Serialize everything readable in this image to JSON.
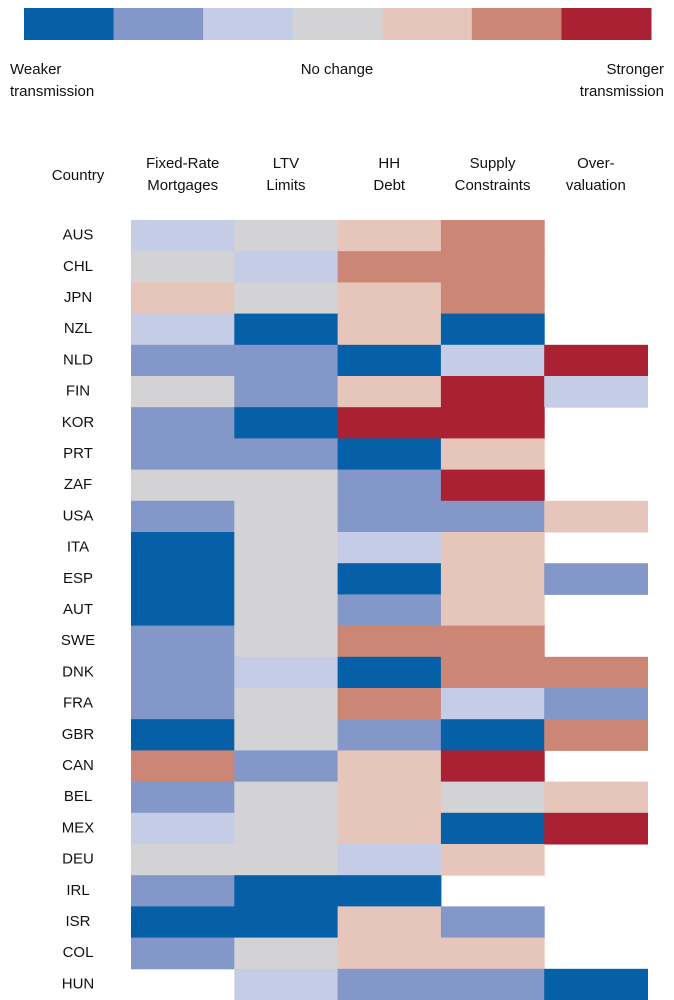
{
  "chart_data": {
    "type": "heatmap",
    "colors": [
      "#0560a8",
      "#8497c9",
      "#c5cce6",
      "#d3d3d5",
      "#e6c6bb",
      "#cb8675",
      "#a92132"
    ],
    "vlim": [
      -3,
      3
    ],
    "legend_labels": [
      [
        "Weaker",
        "transmission"
      ],
      [
        "No change"
      ],
      [
        "Stronger",
        "transmission"
      ]
    ],
    "row_header": "Country",
    "columns": [
      [
        "Fixed-Rate",
        "Mortgages"
      ],
      [
        "LTV",
        "Limits"
      ],
      [
        "HH",
        "Debt"
      ],
      [
        "Supply",
        "Constraints"
      ],
      [
        "Over-",
        "valuation"
      ]
    ],
    "rows": [
      "AUS",
      "CHL",
      "JPN",
      "NZL",
      "NLD",
      "FIN",
      "KOR",
      "PRT",
      "ZAF",
      "USA",
      "ITA",
      "ESP",
      "AUT",
      "SWE",
      "DNK",
      "FRA",
      "GBR",
      "CAN",
      "BEL",
      "MEX",
      "DEU",
      "IRL",
      "ISR",
      "COL",
      "HUN"
    ],
    "values": [
      [
        -1,
        0,
        1,
        2,
        null
      ],
      [
        0,
        -1,
        2,
        2,
        null
      ],
      [
        1,
        0,
        1,
        2,
        null
      ],
      [
        -1,
        -3,
        1,
        -3,
        null
      ],
      [
        -2,
        -2,
        -3,
        -1,
        3
      ],
      [
        0,
        -2,
        1,
        3,
        -1
      ],
      [
        -2,
        -3,
        3,
        3,
        null
      ],
      [
        -2,
        -2,
        -3,
        1,
        null
      ],
      [
        0,
        0,
        -2,
        3,
        null
      ],
      [
        -2,
        0,
        -2,
        -2,
        1
      ],
      [
        -3,
        0,
        -1,
        1,
        null
      ],
      [
        -3,
        0,
        -3,
        1,
        -2
      ],
      [
        -3,
        0,
        -2,
        1,
        null
      ],
      [
        -2,
        0,
        2,
        2,
        null
      ],
      [
        -2,
        -1,
        -3,
        2,
        2
      ],
      [
        -2,
        0,
        2,
        -1,
        -2
      ],
      [
        -3,
        0,
        -2,
        -3,
        2
      ],
      [
        2,
        -2,
        1,
        3,
        null
      ],
      [
        -2,
        0,
        1,
        0,
        1
      ],
      [
        -1,
        0,
        1,
        -3,
        3
      ],
      [
        0,
        0,
        -1,
        1,
        null
      ],
      [
        -2,
        -3,
        -3,
        null,
        null
      ],
      [
        -3,
        -3,
        1,
        -2,
        null
      ],
      [
        -2,
        0,
        1,
        1,
        null
      ],
      [
        null,
        -1,
        -2,
        -2,
        -3
      ]
    ]
  }
}
